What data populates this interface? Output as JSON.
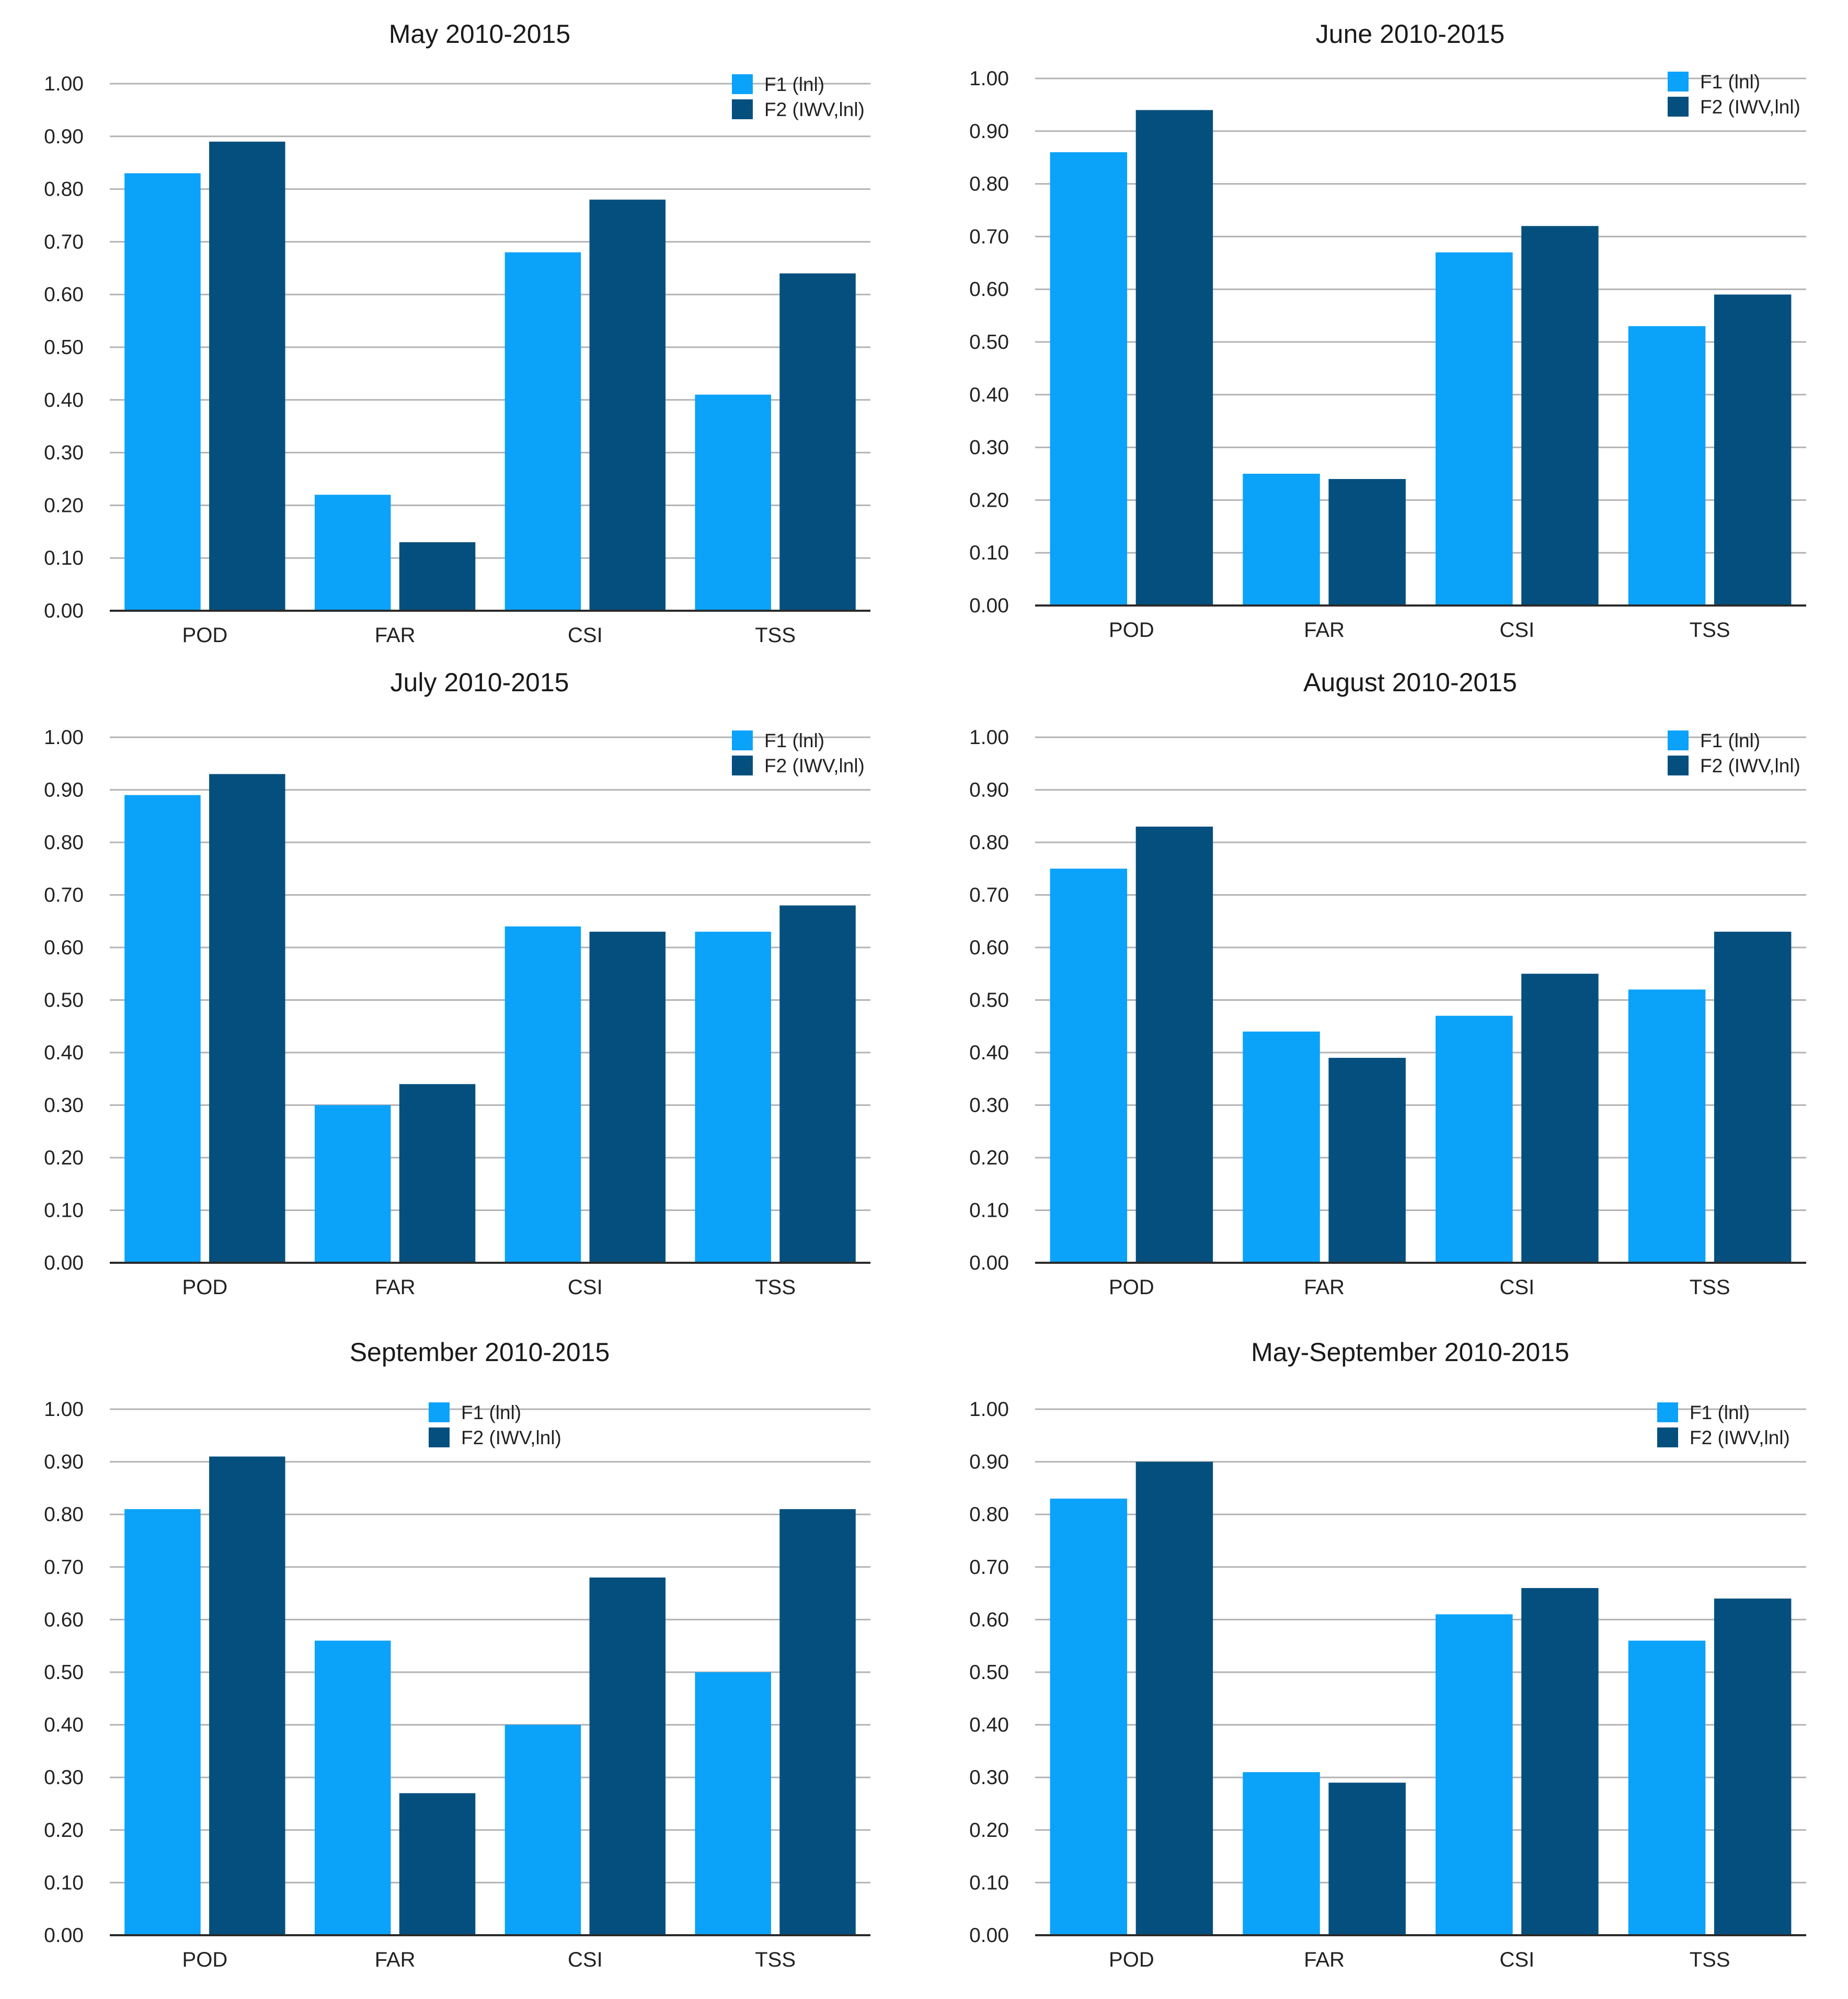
{
  "colors": {
    "F1": "#0ba2fa",
    "F2": "#044f7e",
    "grid": "#b3b3b3"
  },
  "legend": [
    "F1 (lnl)",
    "F2 (IWV,lnl)"
  ],
  "y_ticks": [
    "0.00",
    "0.10",
    "0.20",
    "0.30",
    "0.40",
    "0.50",
    "0.60",
    "0.70",
    "0.80",
    "0.90",
    "1.00"
  ],
  "chart_data": [
    {
      "type": "bar",
      "title": "May 2010-2015",
      "categories": [
        "POD",
        "FAR",
        "CSI",
        "TSS"
      ],
      "ylim": [
        0,
        1
      ],
      "series": [
        {
          "name": "F1 (lnl)",
          "values": [
            0.83,
            0.22,
            0.68,
            0.41
          ]
        },
        {
          "name": "F2 (IWV,lnl)",
          "values": [
            0.89,
            0.13,
            0.78,
            0.64
          ]
        }
      ]
    },
    {
      "type": "bar",
      "title": "June 2010-2015",
      "categories": [
        "POD",
        "FAR",
        "CSI",
        "TSS"
      ],
      "ylim": [
        0,
        1
      ],
      "series": [
        {
          "name": "F1 (lnl)",
          "values": [
            0.86,
            0.25,
            0.67,
            0.53
          ]
        },
        {
          "name": "F2 (IWV,lnl)",
          "values": [
            0.94,
            0.24,
            0.72,
            0.59
          ]
        }
      ]
    },
    {
      "type": "bar",
      "title": "July 2010-2015",
      "categories": [
        "POD",
        "FAR",
        "CSI",
        "TSS"
      ],
      "ylim": [
        0,
        1
      ],
      "series": [
        {
          "name": "F1 (lnl)",
          "values": [
            0.89,
            0.3,
            0.64,
            0.63
          ]
        },
        {
          "name": "F2 (IWV,lnl)",
          "values": [
            0.93,
            0.34,
            0.63,
            0.68
          ]
        }
      ]
    },
    {
      "type": "bar",
      "title": "August 2010-2015",
      "categories": [
        "POD",
        "FAR",
        "CSI",
        "TSS"
      ],
      "ylim": [
        0,
        1
      ],
      "series": [
        {
          "name": "F1 (lnl)",
          "values": [
            0.75,
            0.44,
            0.47,
            0.52
          ]
        },
        {
          "name": "F2 (IWV,lnl)",
          "values": [
            0.83,
            0.39,
            0.55,
            0.63
          ]
        }
      ]
    },
    {
      "type": "bar",
      "title": "September 2010-2015",
      "categories": [
        "POD",
        "FAR",
        "CSI",
        "TSS"
      ],
      "ylim": [
        0,
        1
      ],
      "series": [
        {
          "name": "F1 (lnl)",
          "values": [
            0.81,
            0.56,
            0.4,
            0.5
          ]
        },
        {
          "name": "F2 (IWV,lnl)",
          "values": [
            0.91,
            0.27,
            0.68,
            0.81
          ]
        }
      ]
    },
    {
      "type": "bar",
      "title": "May-September 2010-2015",
      "categories": [
        "POD",
        "FAR",
        "CSI",
        "TSS"
      ],
      "ylim": [
        0,
        1
      ],
      "series": [
        {
          "name": "F1 (lnl)",
          "values": [
            0.83,
            0.31,
            0.61,
            0.56
          ]
        },
        {
          "name": "F2 (IWV,lnl)",
          "values": [
            0.9,
            0.29,
            0.66,
            0.64
          ]
        }
      ]
    }
  ]
}
